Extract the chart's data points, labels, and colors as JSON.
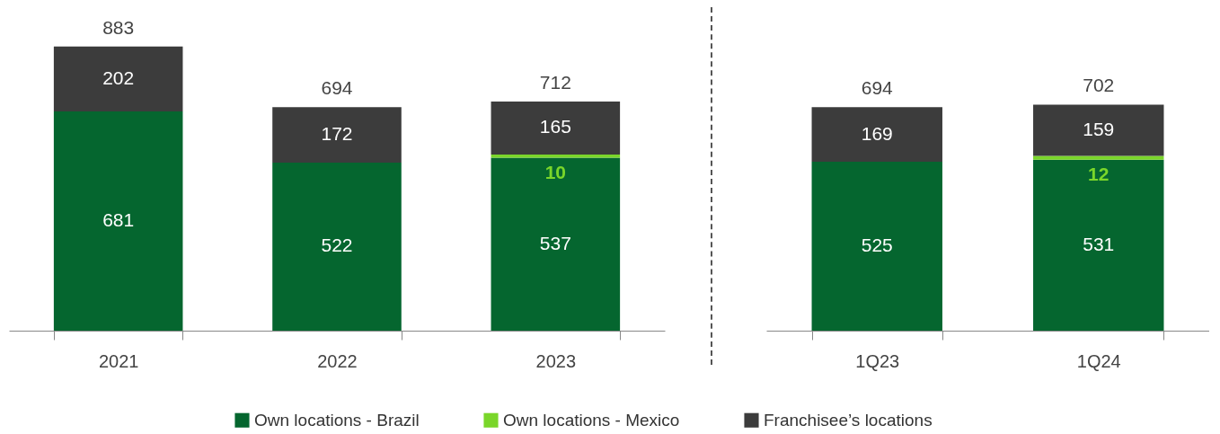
{
  "chart_data": [
    {
      "type": "bar",
      "stacked": true,
      "data_labels": true,
      "legend": "bottom",
      "categories": [
        "2021",
        "2022",
        "2023"
      ],
      "series": [
        {
          "name": "Own locations - Brazil",
          "color": "#05662f",
          "values": [
            681,
            522,
            537
          ]
        },
        {
          "name": "Own locations - Mexico",
          "color": "#7ad62a",
          "values": [
            null,
            null,
            10
          ]
        },
        {
          "name": "Franchisee’s locations",
          "color": "#3c3c3c",
          "values": [
            202,
            172,
            165
          ]
        }
      ],
      "totals": [
        "883",
        "694",
        "712"
      ]
    },
    {
      "type": "bar",
      "stacked": true,
      "data_labels": true,
      "categories": [
        "1Q23",
        "1Q24"
      ],
      "series": [
        {
          "name": "Own locations - Brazil",
          "color": "#05662f",
          "values": [
            525,
            531
          ]
        },
        {
          "name": "Own locations - Mexico",
          "color": "#7ad62a",
          "values": [
            null,
            12
          ]
        },
        {
          "name": "Franchisee’s locations",
          "color": "#3c3c3c",
          "values": [
            169,
            159
          ]
        }
      ],
      "totals": [
        "694",
        "702"
      ]
    }
  ]
}
